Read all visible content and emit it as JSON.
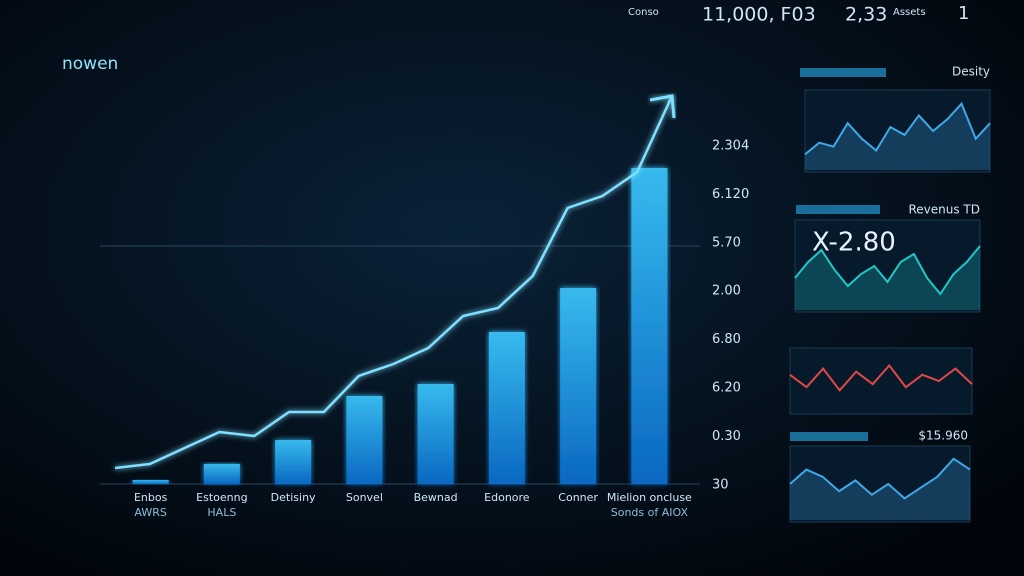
{
  "title": "nowen",
  "header": {
    "stats": [
      "Conso",
      "11,000, F03",
      "2,33",
      "Assets",
      "1"
    ]
  },
  "chart_data": {
    "type": "bar",
    "categories": [
      "Enbos",
      "Estoenng",
      "Detisiny",
      "Sonvel",
      "Bewnad",
      "Edonore",
      "Conner",
      "Mielion oncluse"
    ],
    "sublabels": [
      "AWRS",
      "HALS",
      null,
      null,
      null,
      null,
      null,
      "Sonds of AIOX"
    ],
    "values": [
      1,
      5,
      11,
      22,
      25,
      38,
      49,
      79
    ],
    "color": "#1aa8ff",
    "ylim": [
      0,
      100
    ],
    "trend": {
      "color": "#7fe0ff",
      "values": [
        4,
        5,
        9,
        13,
        12,
        18,
        18,
        27,
        30,
        34,
        42,
        44,
        52,
        69,
        72,
        78,
        97
      ]
    },
    "side_labels": [
      "2.304",
      "6.120",
      "5.70",
      "2.00",
      "6.80",
      "6.20",
      "0.30",
      "30"
    ]
  },
  "panels": [
    {
      "label": "Desity",
      "color": "#3fa9e8",
      "values": [
        20,
        35,
        30,
        60,
        40,
        25,
        55,
        45,
        70,
        50,
        65,
        85,
        40,
        60
      ]
    },
    {
      "label": "Revenus TD",
      "big": "X-2.80",
      "color": "#1fc8c8",
      "values": [
        40,
        60,
        75,
        50,
        30,
        45,
        55,
        35,
        60,
        70,
        40,
        20,
        45,
        60,
        80
      ]
    },
    {
      "label": null,
      "color": "#e04848",
      "values": [
        60,
        40,
        70,
        35,
        65,
        45,
        75,
        40,
        60,
        50,
        70,
        45
      ]
    },
    {
      "label": "$15.960",
      "color": "#3fa9e8",
      "values": [
        50,
        70,
        60,
        40,
        55,
        35,
        50,
        30,
        45,
        60,
        85,
        70
      ]
    }
  ]
}
